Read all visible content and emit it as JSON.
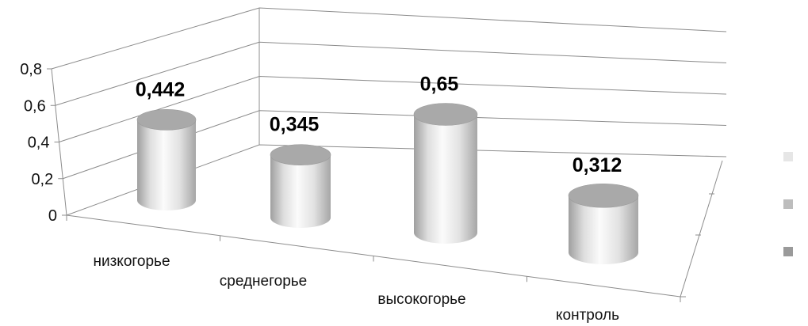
{
  "chart_data": {
    "type": "bar",
    "style": "3d-cylinder",
    "categories": [
      "низкогорье",
      "среднегорье",
      "высокогорье",
      "контроль"
    ],
    "values": [
      0.442,
      0.345,
      0.65,
      0.312
    ],
    "value_labels": [
      "0,442",
      "0,345",
      "0,65",
      "0,312"
    ],
    "y_ticks": [
      "0",
      "0,2",
      "0,4",
      "0,6",
      "0,8"
    ],
    "ylim": [
      0,
      0.8
    ],
    "grid": true,
    "legend_position": "right",
    "legend_swatch_colors": [
      "#e6e6e6",
      "#bdbdbd",
      "#9a9a9a"
    ],
    "bar_color": "#d9d9d9"
  }
}
